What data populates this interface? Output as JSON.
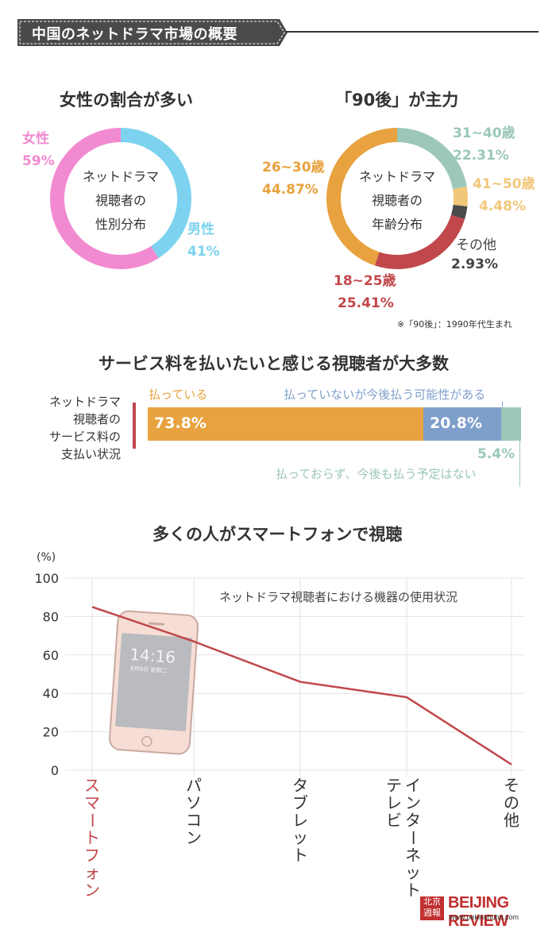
{
  "header": {
    "title": "中国のネットドラマ市場の概要"
  },
  "gender": {
    "title": "女性の割合が多い",
    "center": [
      "ネットドラマ",
      "視聴者の",
      "性別分布"
    ],
    "female_label": "女性",
    "female_pct": "59%",
    "male_label": "男性",
    "male_pct": "41%"
  },
  "age": {
    "title": "「90後」が主力",
    "center": [
      "ネットドラマ",
      "視聴者の",
      "年齢分布"
    ],
    "items": [
      {
        "label": "26~30歳",
        "pct": "44.87%"
      },
      {
        "label": "31~40歳",
        "pct": "22.31%"
      },
      {
        "label": "41~50歳",
        "pct": "4.48%"
      },
      {
        "label": "その他",
        "pct": "2.93%"
      },
      {
        "label": "18~25歳",
        "pct": "25.41%"
      }
    ],
    "note": "※「90後」：1990年代生まれ"
  },
  "payment": {
    "title": "サービス料を払いたいと感じる視聴者が大多数",
    "side_label": [
      "ネットドラマ",
      "視聴者の",
      "サービス料の",
      "支払い状況"
    ],
    "paid_label": "払っている",
    "maybe_label": "払っていないが今後払う可能性がある",
    "no_label": "払っておらず、今後も払う予定はない",
    "paid_pct": "73.8%",
    "maybe_pct": "20.8%",
    "no_pct": "5.4%"
  },
  "device": {
    "title": "多くの人がスマートフォンで視聴",
    "unit": "(%)",
    "chart_title": "ネットドラマ視聴者における機器の使用状況",
    "phone_time": "14:16",
    "phone_date": "8月8日 星期二"
  },
  "footer": {
    "brand": "BEIJING REVIEW",
    "url": "www.pekinshuho.com",
    "cn_logo": "北京週報"
  },
  "colors": {
    "pink": "#f28ad1",
    "blue": "#7dd3ef",
    "orange": "#e8a23f",
    "teal": "#9cc7ba",
    "yellow": "#f1c77a",
    "dark": "#4a4a4a",
    "red": "#c0474a",
    "steel": "#7f9fcb"
  },
  "chart_data": [
    {
      "type": "pie",
      "title": "女性の割合が多い",
      "categories": [
        "女性",
        "男性"
      ],
      "values": [
        59,
        41
      ]
    },
    {
      "type": "pie",
      "title": "「90後」が主力",
      "categories": [
        "26~30歳",
        "31~40歳",
        "41~50歳",
        "その他",
        "18~25歳"
      ],
      "values": [
        44.87,
        22.31,
        4.48,
        2.93,
        25.41
      ]
    },
    {
      "type": "bar",
      "title": "サービス料を払いたいと感じる視聴者が大多数",
      "categories": [
        "払っている",
        "払っていないが今後払う可能性がある",
        "払っておらず、今後も払う予定はない"
      ],
      "values": [
        73.8,
        20.8,
        5.4
      ]
    },
    {
      "type": "line",
      "title": "多くの人がスマートフォンで視聴",
      "subtitle": "ネットドラマ視聴者における機器の使用状況",
      "ylabel": "(%)",
      "categories": [
        "スマートフォン",
        "パソコン",
        "タブレット",
        "インターネットテレビ",
        "その他"
      ],
      "values": [
        85,
        67,
        46,
        38,
        3
      ],
      "ylim": [
        0,
        100
      ],
      "yticks": [
        "0",
        "20",
        "40",
        "60",
        "80",
        "100"
      ],
      "grid": true
    }
  ]
}
